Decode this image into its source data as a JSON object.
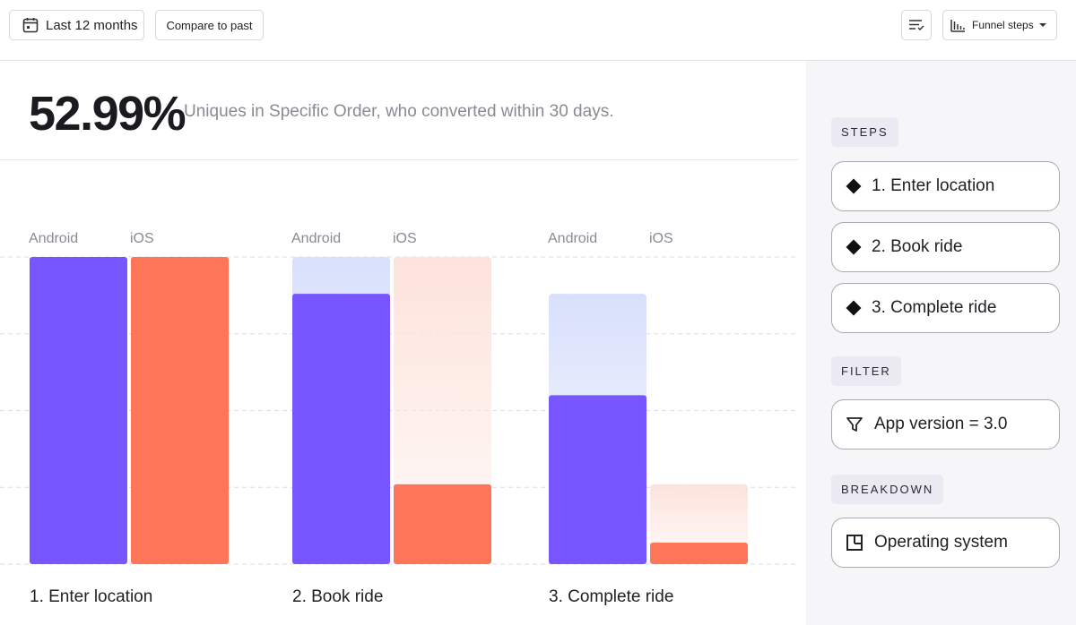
{
  "toolbar": {
    "date_range_label": "Last 12 months",
    "compare_label": "Compare to past",
    "funnel_label": "Funnel steps"
  },
  "summary": {
    "metric": "52.99%",
    "description": "Uniques in Specific Order, who converted within 30 days."
  },
  "colors": {
    "android": "#7856ff",
    "ios": "#ff7557",
    "android_ghost": "#d9e0fb",
    "ios_ghost": "#fde3db"
  },
  "chart_data": {
    "type": "bar",
    "categories": [
      "1. Enter location",
      "2. Book ride",
      "3. Complete ride"
    ],
    "series": [
      {
        "name": "Android",
        "values": [
          100,
          88,
          55
        ]
      },
      {
        "name": "iOS",
        "values": [
          100,
          26,
          7
        ]
      }
    ],
    "previous_step_values": {
      "Android": [
        null,
        100,
        88
      ],
      "iOS": [
        null,
        100,
        26
      ]
    },
    "ylim": [
      0,
      100
    ],
    "grid": true,
    "bar_labels": [
      "Android",
      "iOS"
    ]
  },
  "sidebar": {
    "steps_title": "STEPS",
    "steps": [
      {
        "label": "1. Enter location"
      },
      {
        "label": "2. Book ride"
      },
      {
        "label": "3. Complete ride"
      }
    ],
    "filter_title": "FILTER",
    "filter_label": "App version = 3.0",
    "breakdown_title": "BREAKDOWN",
    "breakdown_label": "Operating system"
  }
}
